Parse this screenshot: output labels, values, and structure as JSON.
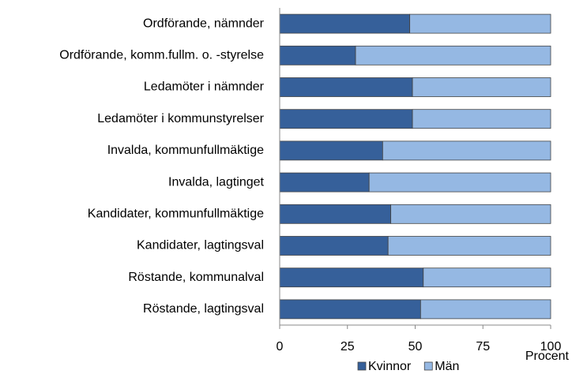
{
  "chart_data": {
    "type": "stacked-barh",
    "x_label": "Procent",
    "categories": [
      "Ordförande, nämnder",
      "Ordförande, komm.fullm. o. -styrelse",
      "Ledamöter i nämnder",
      "Ledamöter i kommunstyrelser",
      "Invalda, kommunfullmäktige",
      "Invalda, lagtinget",
      "Kandidater, kommunfullmäktige",
      "Kandidater, lagtingsval",
      "Röstande, kommunalval",
      "Röstande, lagtingsval"
    ],
    "series": [
      {
        "name": "Kvinnor",
        "color": "#36609a",
        "values": [
          48,
          28,
          49,
          49,
          38,
          33,
          41,
          40,
          53,
          52
        ]
      },
      {
        "name": "Män",
        "color": "#95b8e3",
        "values": [
          52,
          72,
          51,
          51,
          62,
          67,
          59,
          60,
          47,
          48
        ]
      }
    ],
    "xlim": [
      0,
      100
    ],
    "xticks": [
      0,
      25,
      50,
      75,
      100
    ],
    "grid": false,
    "legend": "bottom"
  }
}
